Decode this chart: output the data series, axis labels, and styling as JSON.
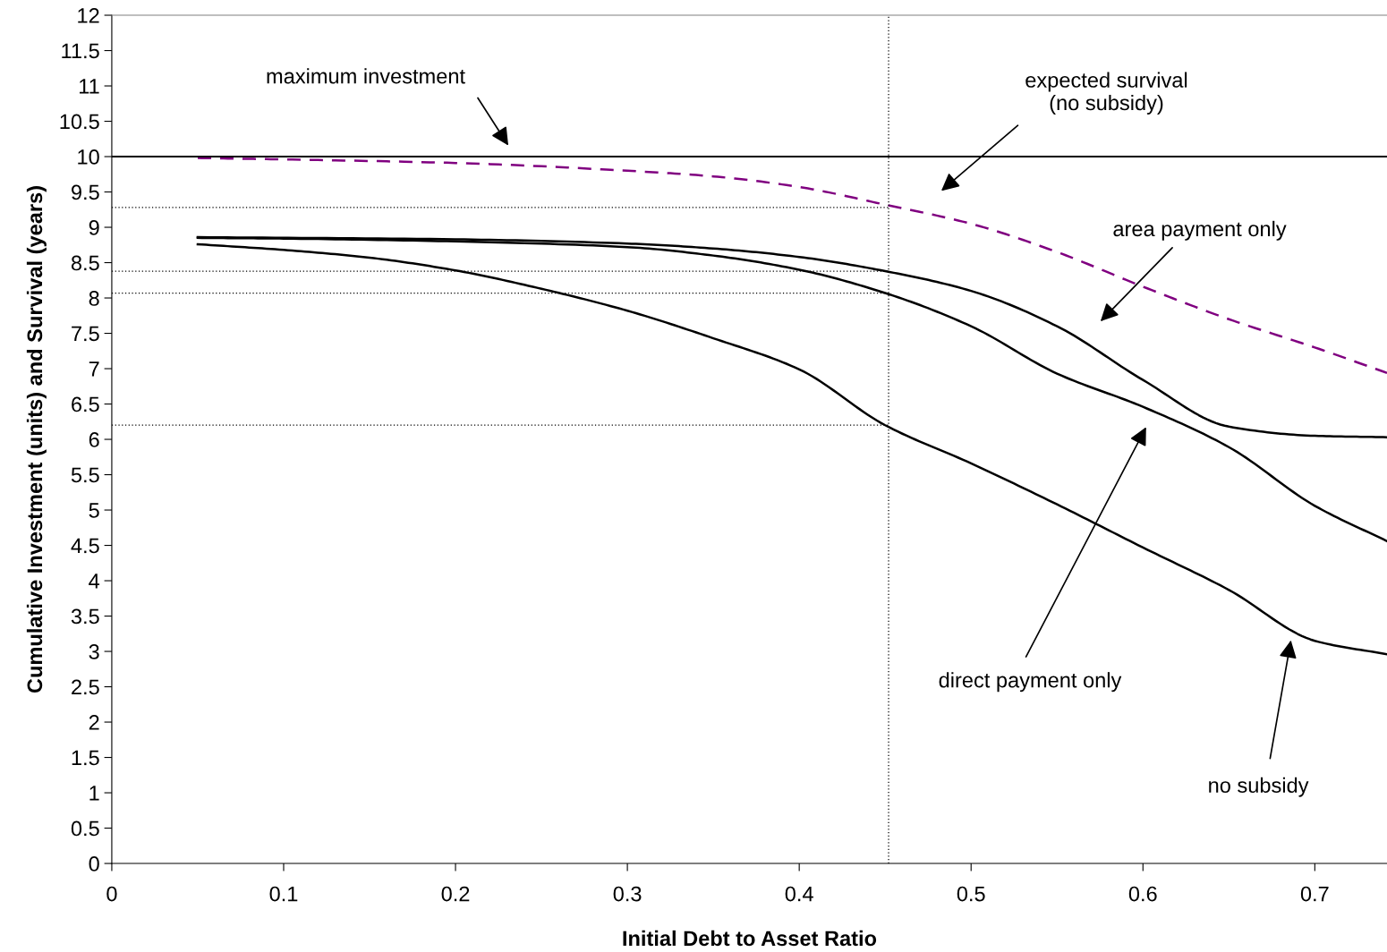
{
  "chart_data": {
    "type": "line",
    "xlabel": "Initial Debt to Asset Ratio",
    "ylabel": "Cumulative Investment (units) and Survival (years)",
    "xlim": [
      0,
      0.742
    ],
    "xticks": [
      0,
      0.1,
      0.2,
      0.3,
      0.4,
      0.5,
      0.6,
      0.7
    ],
    "ylim": [
      0,
      12
    ],
    "yticks": [
      0,
      0.5,
      1,
      1.5,
      2,
      2.5,
      3,
      3.5,
      4,
      4.5,
      5,
      5.5,
      6,
      6.5,
      7,
      7.5,
      8,
      8.5,
      9,
      9.5,
      10,
      10.5,
      11,
      11.5,
      12
    ],
    "grid": false,
    "legend": false,
    "marker": "none",
    "series": [
      {
        "color": "#000000",
        "line_style": "solid",
        "x": [
          0.05,
          0.1,
          0.15,
          0.2,
          0.25,
          0.3,
          0.35,
          0.4,
          0.45,
          0.5,
          0.55,
          0.6,
          0.65,
          0.7,
          0.742
        ],
        "values": [
          8.76,
          8.68,
          8.57,
          8.39,
          8.13,
          7.82,
          7.43,
          6.99,
          6.2,
          5.66,
          5.08,
          4.47,
          3.87,
          3.15,
          2.96
        ]
      },
      {
        "color": "#000000",
        "line_style": "solid",
        "x": [
          0.05,
          0.1,
          0.2,
          0.3,
          0.35,
          0.4,
          0.45,
          0.5,
          0.55,
          0.6,
          0.65,
          0.7,
          0.742
        ],
        "values": [
          8.85,
          8.84,
          8.8,
          8.72,
          8.6,
          8.4,
          8.07,
          7.6,
          6.93,
          6.46,
          5.89,
          5.06,
          4.56
        ]
      },
      {
        "color": "#000000",
        "line_style": "solid",
        "x": [
          0.05,
          0.2,
          0.3,
          0.35,
          0.4,
          0.45,
          0.5,
          0.55,
          0.6,
          0.65,
          0.7,
          0.742
        ],
        "values": [
          8.86,
          8.83,
          8.77,
          8.7,
          8.58,
          8.38,
          8.1,
          7.6,
          6.84,
          6.18,
          6.05,
          6.03
        ]
      },
      {
        "color": "#800080",
        "line_style": "dashed",
        "x": [
          0.05,
          0.1,
          0.2,
          0.3,
          0.35,
          0.4,
          0.45,
          0.5,
          0.55,
          0.6,
          0.65,
          0.7,
          0.742
        ],
        "values": [
          9.98,
          9.96,
          9.91,
          9.8,
          9.72,
          9.57,
          9.32,
          9.05,
          8.65,
          8.16,
          7.7,
          7.3,
          6.94
        ]
      },
      {
        "color": "#000000",
        "line_style": "dotted",
        "x": [
          0,
          0.452
        ],
        "values": [
          9.28,
          9.28
        ]
      },
      {
        "color": "#000000",
        "line_style": "dotted",
        "x": [
          0,
          0.452
        ],
        "values": [
          8.38,
          8.38
        ]
      },
      {
        "color": "#000000",
        "line_style": "dotted",
        "x": [
          0,
          0.452
        ],
        "values": [
          8.07,
          8.07
        ]
      },
      {
        "color": "#000000",
        "line_style": "dotted",
        "x": [
          0,
          0.452
        ],
        "values": [
          6.2,
          6.2
        ]
      }
    ],
    "ref_lines": [
      {
        "axis": "y",
        "value": 10,
        "color": "#000000",
        "line_style": "solid"
      },
      {
        "axis": "x",
        "value": 0.452,
        "color": "#000000",
        "line_style": "dotted"
      }
    ],
    "annotations": [
      "maximum investment",
      "expected survival\n(no subsidy)",
      "area payment only",
      "direct payment only",
      "no subsidy"
    ]
  }
}
